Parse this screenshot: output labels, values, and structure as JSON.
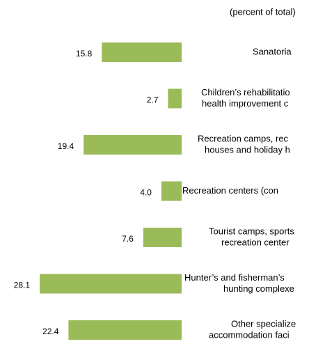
{
  "chart_data": {
    "type": "barh",
    "subtitle": "(percent of total)",
    "categories": [
      [
        "Sanatoria"
      ],
      [
        "Children’s rehabilitatio",
        "health improvement c"
      ],
      [
        "Recreation camps, rec",
        "houses and holiday h"
      ],
      [
        "Recreation centers (con"
      ],
      [
        "Tourist camps, sports",
        "recreation center"
      ],
      [
        "Hunter’s and fisherman’s",
        "hunting complexe"
      ],
      [
        "Other specialize",
        "accommodation faci"
      ]
    ],
    "values": [
      15.8,
      2.7,
      19.4,
      4.0,
      7.6,
      28.1,
      22.4
    ],
    "value_labels": [
      "15.8",
      "2.7",
      "19.4",
      "4.0",
      "7.6",
      "28.1",
      "22.4"
    ],
    "color": "#9bbb59"
  }
}
